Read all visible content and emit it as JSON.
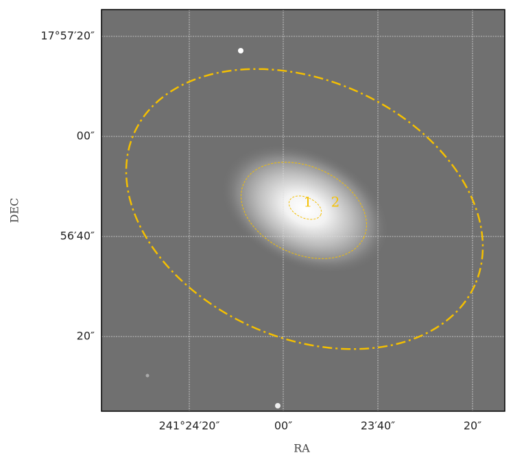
{
  "figure": {
    "xlabel": "RA",
    "ylabel": "DEC",
    "xtick_labels": [
      "241°24′20″",
      "00″",
      "23′40″",
      "20″"
    ],
    "ytick_labels": [
      "17°57′20″",
      "00″",
      "56′40″",
      "20″"
    ],
    "apertures": [
      {
        "label": "1"
      },
      {
        "label": "2"
      }
    ]
  }
}
